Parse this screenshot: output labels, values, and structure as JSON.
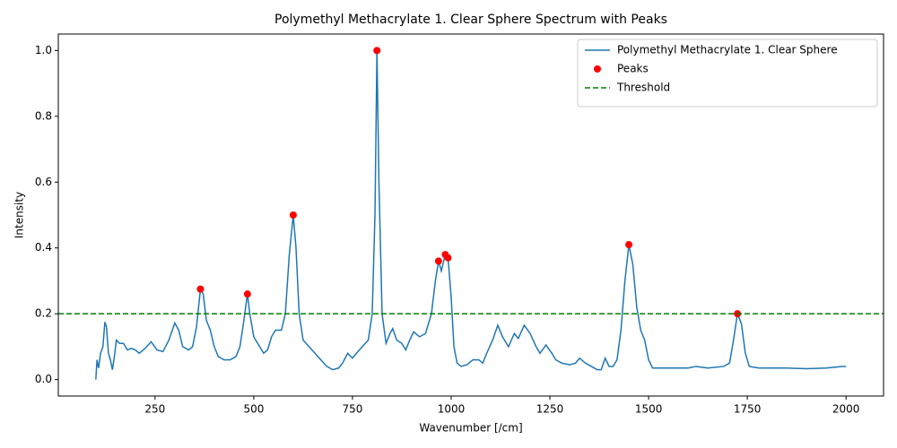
{
  "chart_data": {
    "type": "line",
    "title": "Polymethyl Methacrylate 1. Clear Sphere Spectrum with Peaks",
    "xlabel": "Wavenumber [/cm]",
    "ylabel": "Intensity",
    "xlim": [
      5,
      2095
    ],
    "ylim": [
      -0.05,
      1.05
    ],
    "xticks": [
      250,
      500,
      750,
      1000,
      1250,
      1500,
      1750,
      2000
    ],
    "yticks": [
      {
        "value": 0,
        "label": "0.0"
      },
      0.2,
      0.4,
      0.6,
      0.8,
      {
        "value": 1,
        "label": "1.0"
      }
    ],
    "legend": "upper right",
    "series": [
      {
        "name": "Polymethyl Methacrylate 1. Clear Sphere",
        "kind": "line",
        "color": "#1f77b4",
        "x": [
          100,
          103,
          107,
          112,
          118,
          123,
          127,
          132,
          137,
          142,
          147,
          152,
          160,
          170,
          180,
          190,
          200,
          210,
          225,
          240,
          255,
          270,
          285,
          300,
          310,
          320,
          335,
          345,
          355,
          365,
          372,
          380,
          390,
          400,
          410,
          425,
          440,
          455,
          465,
          475,
          484,
          490,
          500,
          515,
          525,
          535,
          545,
          555,
          570,
          580,
          590,
          600,
          607,
          615,
          625,
          640,
          655,
          670,
          685,
          700,
          715,
          725,
          738,
          750,
          760,
          775,
          790,
          800,
          807,
          812,
          817,
          825,
          835,
          845,
          852,
          862,
          875,
          885,
          895,
          905,
          920,
          935,
          950,
          960,
          968,
          975,
          985,
          992,
          1000,
          1007,
          1015,
          1025,
          1040,
          1055,
          1070,
          1080,
          1090,
          1105,
          1118,
          1130,
          1145,
          1160,
          1170,
          1185,
          1200,
          1215,
          1225,
          1240,
          1255,
          1265,
          1280,
          1300,
          1315,
          1325,
          1340,
          1355,
          1370,
          1380,
          1390,
          1400,
          1410,
          1420,
          1430,
          1440,
          1450,
          1460,
          1470,
          1480,
          1490,
          1500,
          1510,
          1530,
          1560,
          1600,
          1620,
          1650,
          1690,
          1705,
          1715,
          1725,
          1735,
          1745,
          1755,
          1780,
          1850,
          1900,
          1950,
          1990,
          2000
        ],
        "values": [
          0.0,
          0.06,
          0.035,
          0.08,
          0.1,
          0.175,
          0.16,
          0.08,
          0.06,
          0.03,
          0.07,
          0.12,
          0.11,
          0.11,
          0.09,
          0.095,
          0.09,
          0.08,
          0.095,
          0.115,
          0.09,
          0.085,
          0.12,
          0.172,
          0.15,
          0.1,
          0.09,
          0.1,
          0.16,
          0.275,
          0.26,
          0.18,
          0.15,
          0.1,
          0.07,
          0.06,
          0.06,
          0.07,
          0.1,
          0.18,
          0.26,
          0.2,
          0.13,
          0.1,
          0.08,
          0.09,
          0.13,
          0.15,
          0.15,
          0.2,
          0.38,
          0.5,
          0.4,
          0.2,
          0.12,
          0.1,
          0.08,
          0.06,
          0.04,
          0.03,
          0.035,
          0.05,
          0.08,
          0.065,
          0.08,
          0.1,
          0.12,
          0.2,
          0.5,
          1.0,
          0.6,
          0.2,
          0.11,
          0.14,
          0.155,
          0.12,
          0.11,
          0.09,
          0.12,
          0.145,
          0.13,
          0.14,
          0.2,
          0.3,
          0.36,
          0.33,
          0.38,
          0.37,
          0.25,
          0.1,
          0.05,
          0.04,
          0.045,
          0.06,
          0.06,
          0.05,
          0.08,
          0.12,
          0.165,
          0.13,
          0.1,
          0.14,
          0.125,
          0.165,
          0.14,
          0.1,
          0.08,
          0.105,
          0.08,
          0.06,
          0.05,
          0.045,
          0.05,
          0.065,
          0.05,
          0.04,
          0.03,
          0.03,
          0.065,
          0.04,
          0.04,
          0.06,
          0.15,
          0.3,
          0.41,
          0.35,
          0.22,
          0.15,
          0.12,
          0.06,
          0.035,
          0.035,
          0.035,
          0.035,
          0.04,
          0.035,
          0.04,
          0.05,
          0.12,
          0.2,
          0.17,
          0.08,
          0.04,
          0.035,
          0.035,
          0.033,
          0.035,
          0.04,
          0.04
        ]
      },
      {
        "name": "Peaks",
        "kind": "scatter",
        "color": "red",
        "x": [
          365,
          484,
          600,
          812,
          968,
          985,
          992,
          1450,
          1725
        ],
        "values": [
          0.275,
          0.26,
          0.5,
          1.0,
          0.36,
          0.38,
          0.37,
          0.41,
          0.2
        ]
      }
    ],
    "hlines": [
      {
        "name": "Threshold",
        "color": "green",
        "value": 0.2,
        "style": "dashed"
      }
    ]
  }
}
